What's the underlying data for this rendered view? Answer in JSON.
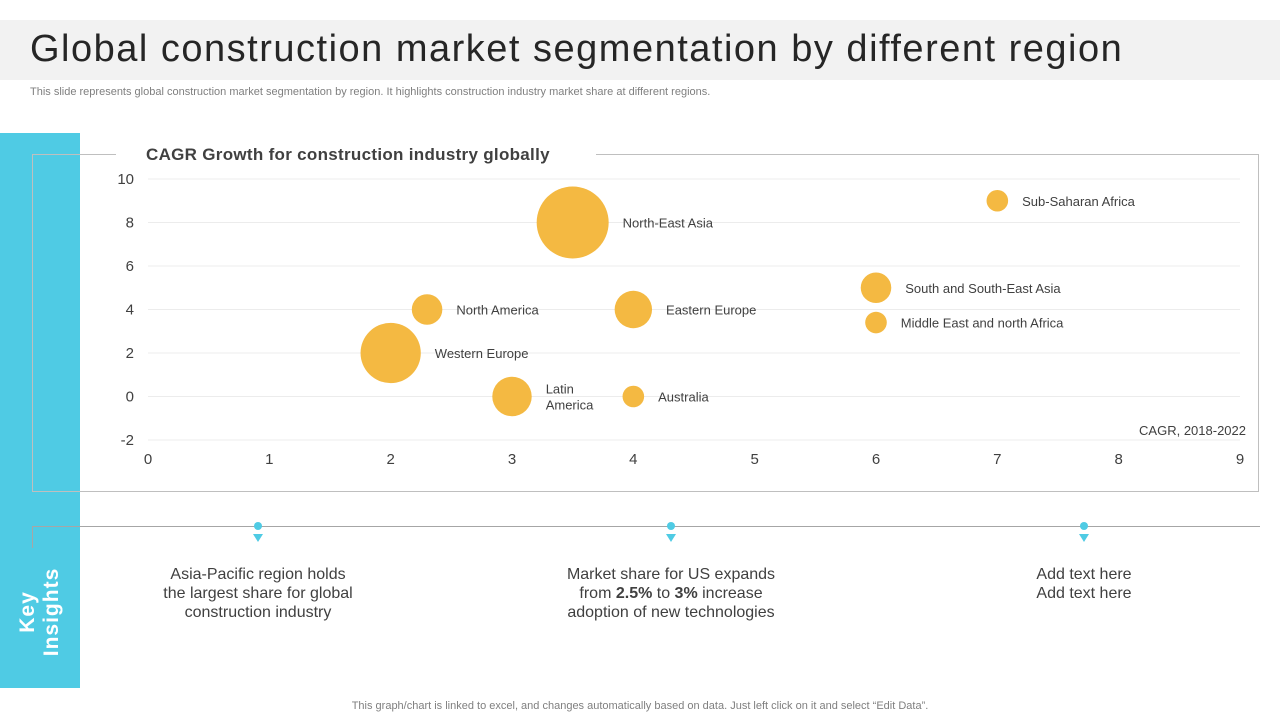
{
  "slide": {
    "title": "Global construction market segmentation by different region",
    "subtitle": "This slide represents global construction market segmentation by region. It highlights construction industry market share at different regions.",
    "side_label_line1": "Key",
    "side_label_line2": "Insights",
    "footer": "This graph/chart is linked to excel,  and changes automatically based on data. Just left click on it and select “Edit Data”."
  },
  "colors": {
    "accent": "#4fcbe4",
    "bubble": "#f4b942",
    "title_bar": "#f2f2f2"
  },
  "chart_data": {
    "type": "scatter",
    "subtype": "bubble",
    "title": "CAGR Growth for construction  industry  globally",
    "axis_note": "CAGR,  2018-2022",
    "xlim": [
      0,
      9
    ],
    "ylim": [
      -2,
      10
    ],
    "x_ticks": [
      "0",
      "1",
      "2",
      "3",
      "4",
      "5",
      "6",
      "7",
      "8",
      "9"
    ],
    "y_ticks": [
      "-2",
      "0",
      "2",
      "4",
      "6",
      "8",
      "10"
    ],
    "grid": "horizontal",
    "points": [
      {
        "label": "North-East Asia",
        "x": 3.5,
        "y": 8,
        "size": 100
      },
      {
        "label": "Sub-Saharan  Africa",
        "x": 7,
        "y": 9,
        "size": 9
      },
      {
        "label": "North America",
        "x": 2.3,
        "y": 4,
        "size": 18
      },
      {
        "label": "Eastern Europe",
        "x": 4,
        "y": 4,
        "size": 27
      },
      {
        "label": "South and South-East Asia",
        "x": 6,
        "y": 5,
        "size": 18
      },
      {
        "label": "Middle East and north Africa",
        "x": 6,
        "y": 3.4,
        "size": 9
      },
      {
        "label": "Western Europe",
        "x": 2,
        "y": 2,
        "size": 70
      },
      {
        "label": "Latin America",
        "x": 3,
        "y": 0,
        "size": 30
      },
      {
        "label": "Australia",
        "x": 4,
        "y": 0,
        "size": 9
      }
    ]
  },
  "insights": [
    {
      "lines": [
        "Asia-Pacific region holds",
        "the largest share for global",
        "construction industry"
      ]
    },
    {
      "lines": [
        "Market share for US expands",
        "from 2.5% to 3% increase",
        "adoption of new technologies"
      ]
    },
    {
      "lines": [
        "Add text here",
        "Add text here"
      ]
    }
  ]
}
